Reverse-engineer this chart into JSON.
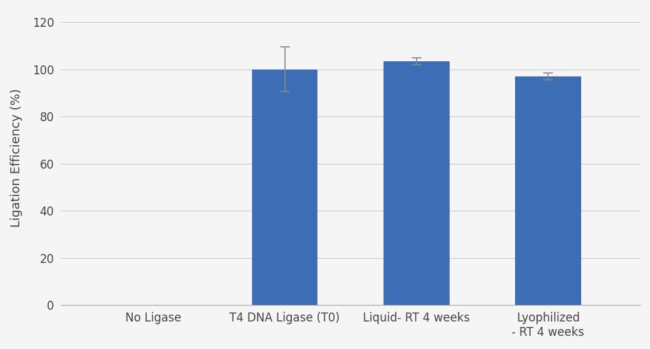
{
  "categories": [
    "No Ligase",
    "T4 DNA Ligase (T0)",
    "Liquid- RT 4 weeks",
    "Lyophilized\n- RT 4 weeks"
  ],
  "values": [
    0,
    100,
    103.5,
    97
  ],
  "errors": [
    0,
    9.5,
    1.5,
    1.5
  ],
  "bar_color": "#3D6DB5",
  "bar_width": 0.5,
  "ylim": [
    0,
    125
  ],
  "yticks": [
    0,
    20,
    40,
    60,
    80,
    100,
    120
  ],
  "ylabel": "Ligation Efficiency (%)",
  "ylabel_fontsize": 13,
  "tick_fontsize": 12,
  "background_color": "#f5f5f5",
  "grid_color": "#cccccc",
  "error_color": "#888888",
  "error_capsize": 5
}
